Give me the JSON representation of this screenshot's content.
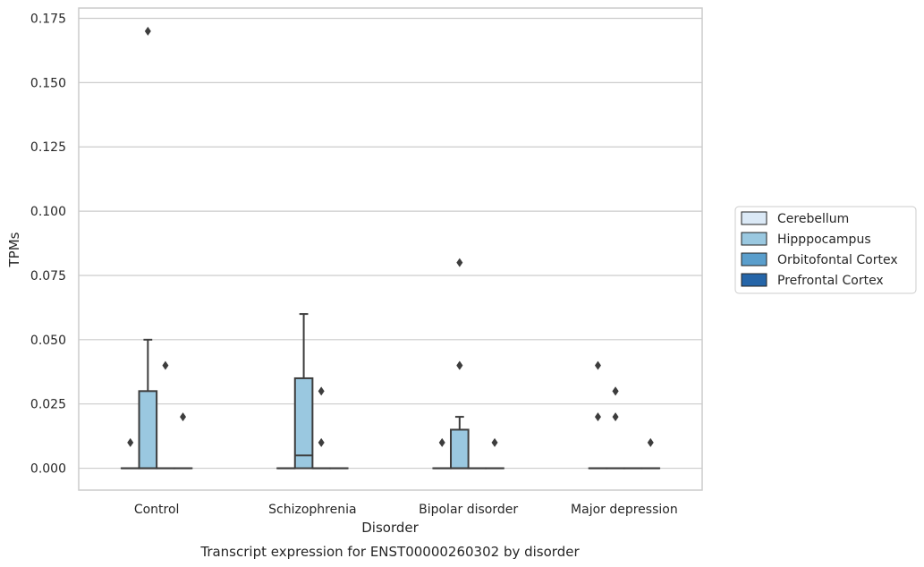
{
  "chart_data": {
    "type": "box",
    "title": "Transcript expression for ENST00000260302 by disorder",
    "xlabel": "Disorder",
    "ylabel": "TPMs",
    "ylim": [
      -0.0085,
      0.179
    ],
    "yticks": [
      "0.000",
      "0.025",
      "0.050",
      "0.075",
      "0.100",
      "0.125",
      "0.150",
      "0.175"
    ],
    "grid": true,
    "legend_position": "right",
    "categories": [
      "Control",
      "Schizophrenia",
      "Bipolar disorder",
      "Major depression"
    ],
    "series": [
      {
        "name": "Cerebellum",
        "color": "#dbe9f6",
        "boxes": [
          {
            "q1": 0,
            "median": 0,
            "q3": 0,
            "whislo": 0,
            "whishi": 0,
            "fliers": [
              0.01
            ]
          },
          {
            "q1": 0,
            "median": 0,
            "q3": 0,
            "whislo": 0,
            "whishi": 0,
            "fliers": []
          },
          {
            "q1": 0,
            "median": 0,
            "q3": 0,
            "whislo": 0,
            "whishi": 0,
            "fliers": [
              0.01
            ]
          },
          {
            "q1": 0,
            "median": 0,
            "q3": 0,
            "whislo": 0,
            "whishi": 0,
            "fliers": [
              0.02,
              0.04
            ]
          }
        ]
      },
      {
        "name": "Hipppocampus",
        "color": "#9ac8e0",
        "boxes": [
          {
            "q1": 0,
            "median": 0,
            "q3": 0.03,
            "whislo": 0,
            "whishi": 0.05,
            "fliers": [
              0.17
            ]
          },
          {
            "q1": 0,
            "median": 0.005,
            "q3": 0.035,
            "whislo": 0,
            "whishi": 0.06,
            "fliers": []
          },
          {
            "q1": 0,
            "median": 0,
            "q3": 0.015,
            "whislo": 0,
            "whishi": 0.02,
            "fliers": [
              0.04,
              0.04,
              0.08
            ]
          },
          {
            "q1": 0,
            "median": 0,
            "q3": 0,
            "whislo": 0,
            "whishi": 0,
            "fliers": [
              0.02,
              0.03,
              0.03
            ]
          }
        ]
      },
      {
        "name": "Orbitofontal Cortex",
        "color": "#5a9ecc",
        "boxes": [
          {
            "q1": 0,
            "median": 0,
            "q3": 0,
            "whislo": 0,
            "whishi": 0,
            "fliers": [
              0.04
            ]
          },
          {
            "q1": 0,
            "median": 0,
            "q3": 0,
            "whislo": 0,
            "whishi": 0,
            "fliers": [
              0.01,
              0.03
            ]
          },
          {
            "q1": 0,
            "median": 0,
            "q3": 0,
            "whislo": 0,
            "whishi": 0,
            "fliers": []
          },
          {
            "q1": 0,
            "median": 0,
            "q3": 0,
            "whislo": 0,
            "whishi": 0,
            "fliers": []
          }
        ]
      },
      {
        "name": "Prefrontal Cortex",
        "color": "#2565a8",
        "boxes": [
          {
            "q1": 0,
            "median": 0,
            "q3": 0,
            "whislo": 0,
            "whishi": 0,
            "fliers": [
              0.02
            ]
          },
          {
            "q1": 0,
            "median": 0,
            "q3": 0,
            "whislo": 0,
            "whishi": 0,
            "fliers": []
          },
          {
            "q1": 0,
            "median": 0,
            "q3": 0,
            "whislo": 0,
            "whishi": 0,
            "fliers": [
              0.01
            ]
          },
          {
            "q1": 0,
            "median": 0,
            "q3": 0,
            "whislo": 0,
            "whishi": 0,
            "fliers": [
              0.01
            ]
          }
        ]
      }
    ]
  }
}
